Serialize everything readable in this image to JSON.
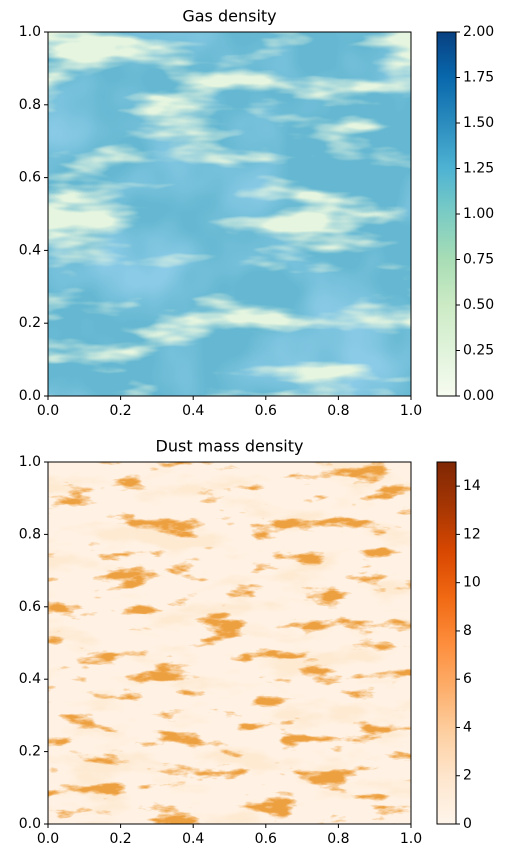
{
  "chart_data": [
    {
      "type": "heatmap",
      "title": "Gas density",
      "xlim": [
        0,
        1
      ],
      "ylim": [
        0,
        1
      ],
      "xticks": [
        {
          "value": 0,
          "label": "0.0"
        },
        0.2,
        0.4,
        0.6,
        0.8,
        {
          "value": 1,
          "label": "1.0"
        }
      ],
      "yticks": [
        {
          "value": 0,
          "label": "0.0"
        },
        0.2,
        0.4,
        0.6,
        0.8,
        {
          "value": 1,
          "label": "1.0"
        }
      ],
      "colorbar": {
        "lim": [
          0,
          2
        ],
        "ticks": [
          {
            "value": 0,
            "label": "0.00"
          },
          0.25,
          {
            "value": 0.5,
            "label": "0.50"
          },
          0.75,
          {
            "value": 1,
            "label": "1.00"
          },
          1.25,
          {
            "value": 1.5,
            "label": "1.50"
          },
          1.75,
          {
            "value": 2,
            "label": "2.00"
          }
        ],
        "colors": [
          "#f7fcf0",
          "#e0f3db",
          "#ccebc5",
          "#a8ddb5",
          "#7bccc4",
          "#4eb3d3",
          "#2b8cbe",
          "#0868ac",
          "#084081"
        ]
      }
    },
    {
      "type": "heatmap",
      "title": "Dust mass density",
      "xlim": [
        0,
        1
      ],
      "ylim": [
        0,
        1
      ],
      "xticks": [
        {
          "value": 0,
          "label": "0.0"
        },
        0.2,
        0.4,
        0.6,
        0.8,
        {
          "value": 1,
          "label": "1.0"
        }
      ],
      "yticks": [
        {
          "value": 0,
          "label": "0.0"
        },
        0.2,
        0.4,
        0.6,
        0.8,
        {
          "value": 1,
          "label": "1.0"
        }
      ],
      "colorbar": {
        "lim": [
          0,
          15
        ],
        "ticks": [
          0,
          2,
          4,
          6,
          8,
          10,
          12,
          14
        ],
        "colors": [
          "#fff5eb",
          "#fee6ce",
          "#fdd0a2",
          "#fdae6b",
          "#fd8d3c",
          "#f16913",
          "#d94801",
          "#a63603",
          "#7f2704"
        ]
      }
    }
  ]
}
